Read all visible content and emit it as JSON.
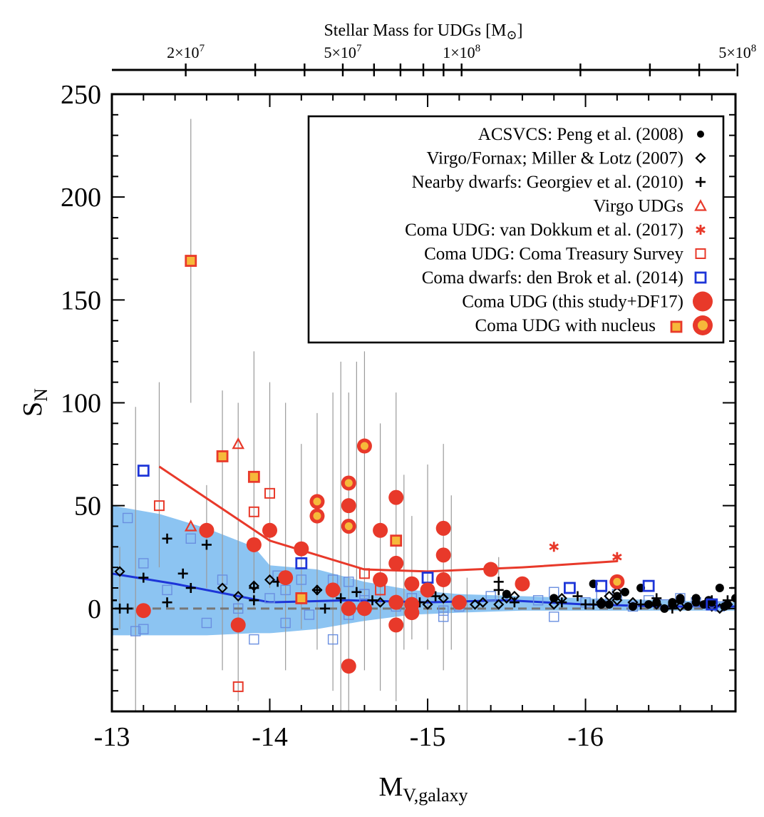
{
  "chart_data": {
    "type": "scatter",
    "title": "",
    "xlabel": {
      "main": "M",
      "sub": "V,galaxy"
    },
    "ylabel": {
      "main": "S",
      "sub": "N"
    },
    "top_axis": {
      "label": {
        "main": "Stellar Mass for UDGs [M",
        "sub": "⊙",
        "close": "]"
      },
      "tick_labels": [
        {
          "base": "2×10",
          "exp": "7",
          "mass": 20000000.0
        },
        {
          "base": "5×10",
          "exp": "7",
          "mass": 50000000.0
        },
        {
          "base": "1×10",
          "exp": "8",
          "mass": 100000000.0
        },
        {
          "base": "5×10",
          "exp": "8",
          "mass": 500000000.0
        }
      ],
      "major_masses": [
        20000000.0,
        30000000.0,
        40000000.0,
        50000000.0,
        60000000.0,
        70000000.0,
        80000000.0,
        90000000.0,
        100000000.0,
        200000000.0,
        300000000.0,
        400000000.0,
        500000000.0,
        600000000.0
      ]
    },
    "xlim": [
      -13,
      -16.95
    ],
    "ylim": [
      -50,
      250
    ],
    "x_ticks": [
      {
        "value": -13,
        "label": "-13"
      },
      {
        "value": -14,
        "label": "-14"
      },
      {
        "value": -15,
        "label": "-15"
      },
      {
        "value": -16,
        "label": "-16"
      }
    ],
    "y_ticks": [
      {
        "value": 0,
        "label": "0"
      },
      {
        "value": 50,
        "label": "50"
      },
      {
        "value": 100,
        "label": "100"
      },
      {
        "value": 150,
        "label": "150"
      },
      {
        "value": 200,
        "label": "200"
      },
      {
        "value": 250,
        "label": "250"
      }
    ],
    "zero_line": 0,
    "legend_position": "top-right",
    "colors": {
      "red": "#e8392a",
      "blue": "#1d35d8",
      "light_blue": "#6a8fe0",
      "band": "#8cc4f2",
      "orange": "#f6b93a",
      "gray_line": "#777777",
      "error_bar": "#9a9a9a"
    },
    "legend": [
      {
        "label": "ACSVCS: Peng et al. (2008)",
        "marker": "dot"
      },
      {
        "label": "Virgo/Fornax; Miller & Lotz (2007)",
        "marker": "diamond"
      },
      {
        "label": "Nearby dwarfs: Georgiev et al. (2010)",
        "marker": "plus"
      },
      {
        "label": "Virgo UDGs",
        "marker": "triangle"
      },
      {
        "label": "Coma UDG: van Dokkum et al. (2017)",
        "marker": "asterisk"
      },
      {
        "label": "Coma UDG: Coma Treasury Survey",
        "marker": "red-square"
      },
      {
        "label": "Coma dwarfs: den Brok et al. (2014)",
        "marker": "blue-square"
      },
      {
        "label": "Coma UDG (this study+DF17)",
        "marker": "red-circle"
      },
      {
        "label": "Coma UDG with nucleus",
        "marker": "nucleus"
      }
    ],
    "series": {
      "acsvcs": [
        [
          -15.5,
          7
        ],
        [
          -15.8,
          5
        ],
        [
          -16.05,
          12
        ],
        [
          -16.1,
          2
        ],
        [
          -16.2,
          6
        ],
        [
          -16.3,
          1
        ],
        [
          -16.35,
          10
        ],
        [
          -16.45,
          3
        ],
        [
          -16.5,
          0
        ],
        [
          -16.55,
          3
        ],
        [
          -16.6,
          4
        ],
        [
          -16.65,
          1
        ],
        [
          -16.7,
          5
        ],
        [
          -16.75,
          2
        ],
        [
          -16.8,
          3
        ],
        [
          -16.85,
          10
        ],
        [
          -16.9,
          2
        ],
        [
          -16.95,
          5
        ],
        [
          -16.55,
          2
        ],
        [
          -16.25,
          8
        ],
        [
          -16.15,
          2
        ],
        [
          -16.4,
          2
        ],
        [
          -16.7,
          3
        ],
        [
          -16.88,
          1
        ],
        [
          -16.6,
          5
        ],
        [
          -16.78,
          4
        ]
      ],
      "virgo_fornax": [
        [
          -13.05,
          18
        ],
        [
          -13.7,
          10
        ],
        [
          -13.8,
          6
        ],
        [
          -13.9,
          11
        ],
        [
          -14.0,
          14
        ],
        [
          -14.3,
          9
        ],
        [
          -14.7,
          3
        ],
        [
          -15.0,
          2
        ],
        [
          -15.1,
          5
        ],
        [
          -15.3,
          2
        ],
        [
          -15.35,
          3
        ],
        [
          -15.45,
          2
        ],
        [
          -15.5,
          5
        ],
        [
          -15.55,
          6
        ],
        [
          -15.8,
          2
        ],
        [
          -15.85,
          5
        ],
        [
          -16.1,
          3
        ],
        [
          -16.15,
          6
        ],
        [
          -16.2,
          4
        ],
        [
          -16.3,
          3
        ],
        [
          -16.45,
          2
        ],
        [
          -16.6,
          1
        ],
        [
          -16.8,
          1
        ],
        [
          -16.85,
          0
        ],
        [
          -16.9,
          2
        ],
        [
          -16.2,
          8
        ]
      ],
      "georgiev": [
        [
          -13.0,
          4
        ],
        [
          -13.05,
          0
        ],
        [
          -13.1,
          0
        ],
        [
          -13.2,
          15
        ],
        [
          -13.35,
          34
        ],
        [
          -13.35,
          3
        ],
        [
          -13.45,
          17
        ],
        [
          -13.5,
          10
        ],
        [
          -13.6,
          31
        ],
        [
          -13.9,
          10
        ],
        [
          -14.05,
          13
        ],
        [
          -14.3,
          9
        ],
        [
          -14.35,
          0
        ],
        [
          -14.45,
          5
        ],
        [
          -14.55,
          8
        ],
        [
          -14.65,
          4
        ],
        [
          -14.95,
          3
        ],
        [
          -15.05,
          6
        ],
        [
          -15.45,
          13
        ],
        [
          -15.45,
          9
        ],
        [
          -15.55,
          3
        ],
        [
          -15.85,
          3
        ],
        [
          -15.95,
          6
        ],
        [
          -16.0,
          2
        ],
        [
          -16.05,
          2
        ],
        [
          -16.1,
          3
        ],
        [
          -16.35,
          2
        ],
        [
          -16.45,
          5
        ],
        [
          -16.55,
          0
        ],
        [
          -16.8,
          4
        ],
        [
          -16.9,
          4
        ],
        [
          -16.95,
          10
        ],
        [
          -13.9,
          4
        ]
      ],
      "virgo_udgs": [
        [
          -13.5,
          40
        ],
        [
          -13.8,
          80
        ]
      ],
      "van_dokkum": [
        [
          -15.8,
          30
        ],
        [
          -16.2,
          25
        ]
      ],
      "coma_treasury": [
        [
          -13.3,
          50
        ],
        [
          -13.8,
          -38
        ],
        [
          -13.9,
          47
        ],
        [
          -14.0,
          56
        ],
        [
          -14.6,
          17
        ],
        [
          -14.7,
          9
        ]
      ],
      "den_brok_bold": [
        [
          -13.2,
          67
        ],
        [
          -14.2,
          22
        ],
        [
          -15.0,
          15
        ],
        [
          -15.9,
          10
        ],
        [
          -16.1,
          11
        ],
        [
          -16.4,
          11
        ],
        [
          -16.8,
          2
        ]
      ],
      "den_brok_faint": [
        [
          -13.1,
          44
        ],
        [
          -13.15,
          -11
        ],
        [
          -13.2,
          22
        ],
        [
          -13.2,
          -10
        ],
        [
          -13.35,
          9
        ],
        [
          -13.5,
          34
        ],
        [
          -13.6,
          -7
        ],
        [
          -13.7,
          14
        ],
        [
          -13.8,
          0
        ],
        [
          -13.9,
          -15
        ],
        [
          -14.0,
          5
        ],
        [
          -14.05,
          16
        ],
        [
          -14.1,
          -7
        ],
        [
          -14.1,
          9
        ],
        [
          -14.2,
          14
        ],
        [
          -14.25,
          -3
        ],
        [
          -14.4,
          14
        ],
        [
          -14.4,
          -15
        ],
        [
          -14.5,
          -3
        ],
        [
          -14.5,
          13
        ],
        [
          -14.6,
          7
        ],
        [
          -14.8,
          1
        ],
        [
          -14.9,
          5
        ],
        [
          -15.1,
          -4
        ],
        [
          -15.2,
          1
        ],
        [
          -15.4,
          6
        ],
        [
          -15.7,
          4
        ],
        [
          -15.8,
          8
        ],
        [
          -15.8,
          -4
        ],
        [
          -16.0,
          3
        ],
        [
          -16.1,
          6
        ],
        [
          -16.2,
          7
        ],
        [
          -16.3,
          1
        ],
        [
          -16.4,
          4
        ],
        [
          -16.5,
          2
        ],
        [
          -16.6,
          5
        ],
        [
          -16.7,
          3
        ],
        [
          -16.85,
          1
        ],
        [
          -14.6,
          4
        ],
        [
          -15.1,
          -1
        ]
      ],
      "coma_udg": [
        [
          -13.2,
          -1
        ],
        [
          -13.6,
          38
        ],
        [
          -13.8,
          -8
        ],
        [
          -13.9,
          31
        ],
        [
          -14.0,
          38
        ],
        [
          -14.1,
          15
        ],
        [
          -14.2,
          29
        ],
        [
          -14.4,
          9
        ],
        [
          -14.5,
          50
        ],
        [
          -14.5,
          0
        ],
        [
          -14.5,
          -28
        ],
        [
          -14.6,
          0
        ],
        [
          -14.7,
          38
        ],
        [
          -14.7,
          14
        ],
        [
          -14.8,
          54
        ],
        [
          -14.8,
          22
        ],
        [
          -14.8,
          3
        ],
        [
          -14.8,
          -8
        ],
        [
          -14.9,
          12
        ],
        [
          -14.9,
          2
        ],
        [
          -14.9,
          -2
        ],
        [
          -15.0,
          9
        ],
        [
          -15.1,
          39
        ],
        [
          -15.1,
          26
        ],
        [
          -15.1,
          14
        ],
        [
          -15.2,
          3
        ],
        [
          -15.4,
          19
        ],
        [
          -15.6,
          12
        ]
      ],
      "nucleus_circles": [
        [
          -14.3,
          52
        ],
        [
          -14.3,
          45
        ],
        [
          -14.5,
          61
        ],
        [
          -14.5,
          40
        ],
        [
          -14.6,
          79
        ],
        [
          -16.2,
          13
        ]
      ],
      "nucleus_squares": [
        [
          -13.5,
          169
        ],
        [
          -13.7,
          74
        ],
        [
          -13.9,
          64
        ],
        [
          -14.2,
          5
        ],
        [
          -14.8,
          33
        ]
      ],
      "error_bars": [
        [
          -13.5,
          100,
          238
        ],
        [
          -13.15,
          -50,
          98
        ],
        [
          -13.3,
          20,
          110
        ],
        [
          -13.7,
          -30,
          106
        ],
        [
          -13.8,
          -45,
          100
        ],
        [
          -13.9,
          0,
          125
        ],
        [
          -14.0,
          10,
          110
        ],
        [
          -14.1,
          -30,
          100
        ],
        [
          -14.2,
          -10,
          80
        ],
        [
          -14.3,
          -20,
          95
        ],
        [
          -14.4,
          -40,
          105
        ],
        [
          -14.45,
          -50,
          120
        ],
        [
          -14.5,
          -50,
          105
        ],
        [
          -14.55,
          10,
          120
        ],
        [
          -14.6,
          -30,
          125
        ],
        [
          -14.7,
          -40,
          90
        ],
        [
          -14.8,
          -45,
          105
        ],
        [
          -14.85,
          -20,
          65
        ],
        [
          -14.9,
          -15,
          45
        ],
        [
          -15.0,
          -20,
          70
        ],
        [
          -15.1,
          -30,
          80
        ],
        [
          -15.15,
          -20,
          55
        ],
        [
          -15.25,
          -50,
          15
        ],
        [
          -13.05,
          -10,
          30
        ],
        [
          -13.6,
          10,
          60
        ],
        [
          -15.45,
          5,
          25
        ]
      ]
    },
    "red_trend": {
      "x": [
        -13.3,
        -14.0,
        -14.6,
        -15.0,
        -15.6,
        -16.2
      ],
      "y": [
        69,
        33,
        19,
        18,
        20,
        23
      ]
    },
    "blue_trend": {
      "x": [
        -13.0,
        -13.4,
        -13.8,
        -14.0,
        -14.5,
        -15.0,
        -15.5,
        -16.0,
        -16.5,
        -16.95
      ],
      "y": [
        17,
        12,
        6,
        3,
        4,
        3,
        4,
        2,
        1,
        1
      ]
    },
    "band": {
      "x": [
        -13.0,
        -13.3,
        -13.6,
        -13.9,
        -14.0,
        -14.3,
        -14.6,
        -14.9,
        -15.2,
        -15.6,
        -16.0,
        -16.5,
        -16.95
      ],
      "upper": [
        50,
        46,
        39,
        30,
        21,
        19,
        13,
        9,
        7,
        6,
        5,
        4,
        3
      ],
      "lower": [
        -13,
        -13,
        -13,
        -12,
        -12,
        -10,
        -6,
        -3,
        -2,
        -1,
        -1,
        -1,
        -1
      ]
    }
  }
}
